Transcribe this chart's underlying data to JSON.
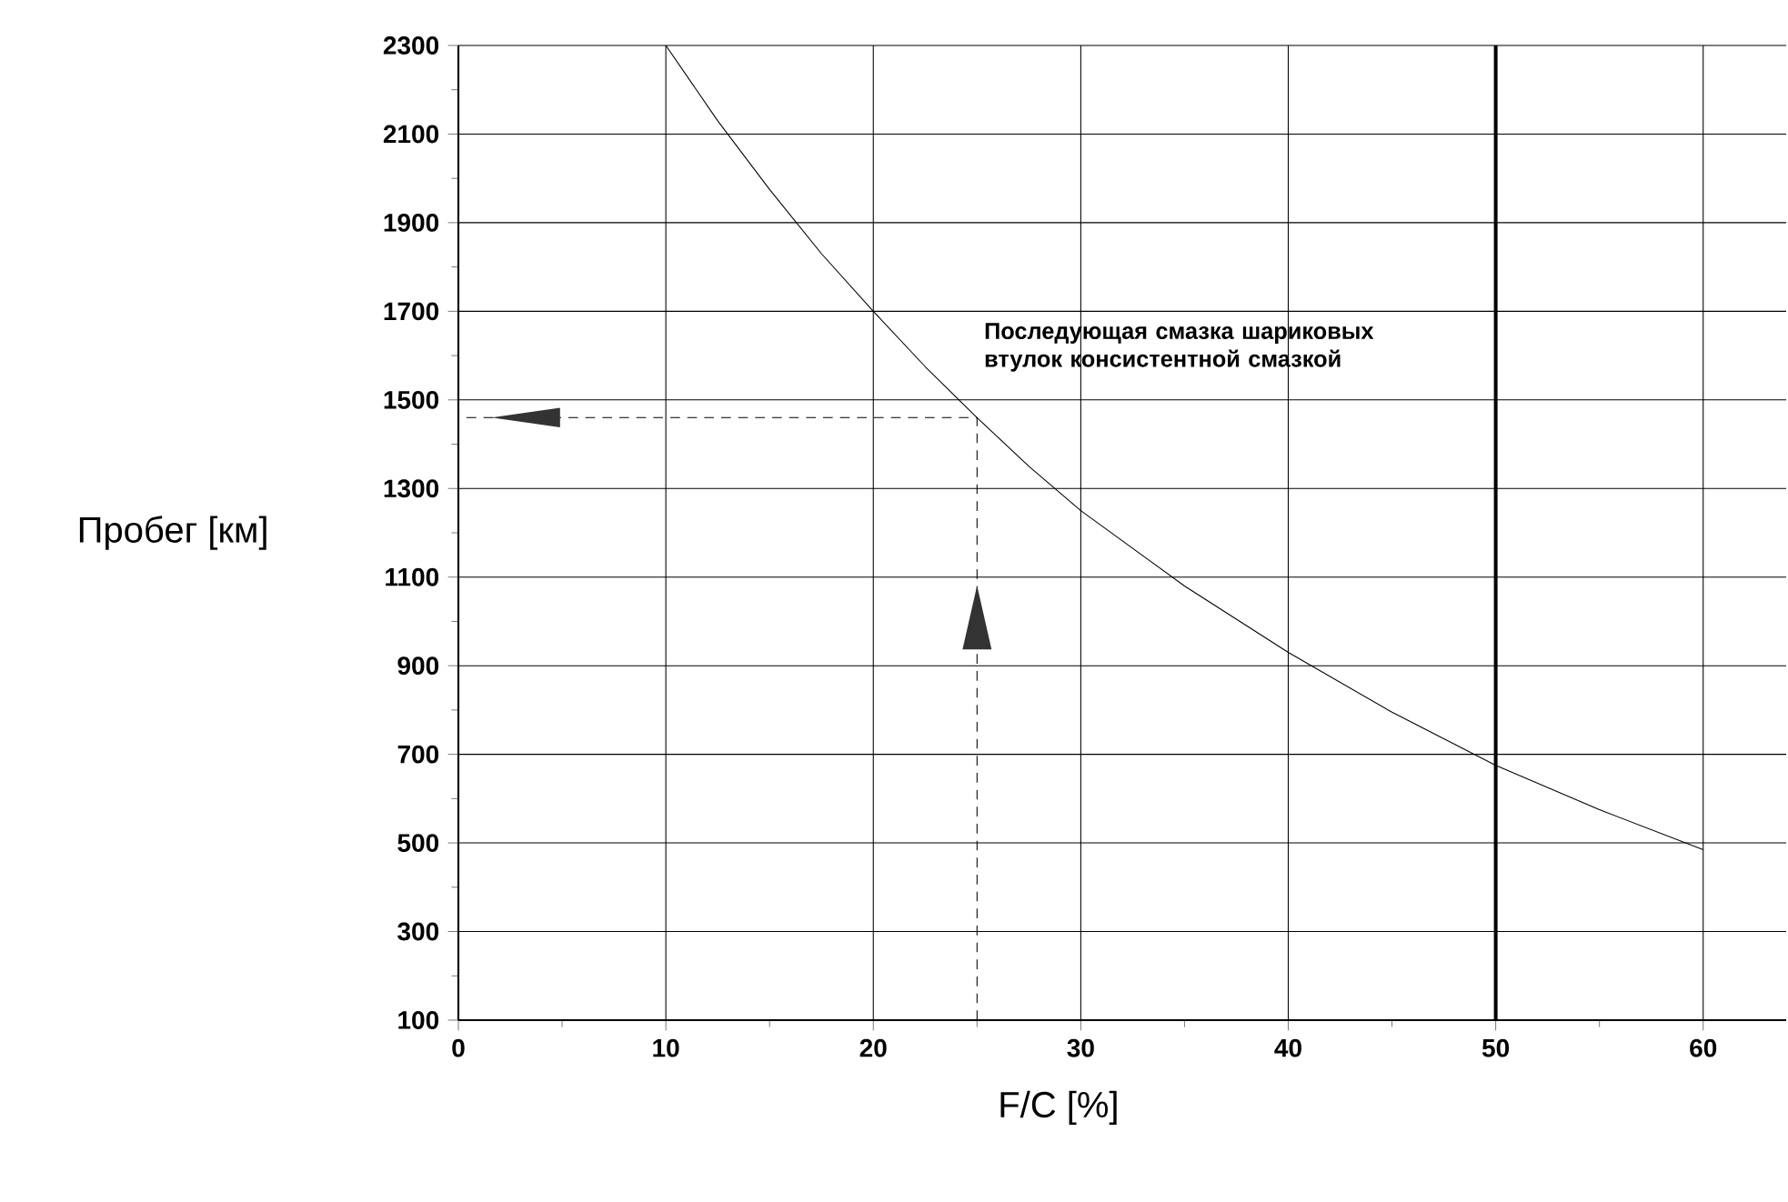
{
  "chart_data": {
    "type": "line",
    "xlabel": "F/C [%]",
    "ylabel": "Пробег [км]",
    "xlim": [
      0,
      64
    ],
    "ylim": [
      100,
      2300
    ],
    "xticks": [
      0,
      10,
      20,
      30,
      40,
      50,
      60
    ],
    "yticks": [
      100,
      300,
      500,
      700,
      900,
      1100,
      1300,
      1500,
      1700,
      1900,
      2100,
      2300
    ],
    "grid": true,
    "series": [
      {
        "color": "#000000",
        "x": [
          10,
          12.5,
          15,
          17.5,
          20,
          22.5,
          25,
          27.5,
          30,
          35,
          40,
          45,
          50,
          55,
          60
        ],
        "values": [
          2300,
          2130,
          1975,
          1830,
          1700,
          1575,
          1460,
          1350,
          1250,
          1080,
          930,
          795,
          675,
          575,
          485
        ]
      },
      {
        "color": "#000000",
        "line_style": "dashed",
        "x": [
          25,
          25,
          0
        ],
        "values": [
          100,
          1460,
          1460
        ]
      }
    ],
    "ref_lines": [
      {
        "axis": "x",
        "value": 50,
        "color": "#000000"
      }
    ],
    "annotations": [
      "Последующая смазка шариковых втулок консистентной смазкой"
    ]
  }
}
